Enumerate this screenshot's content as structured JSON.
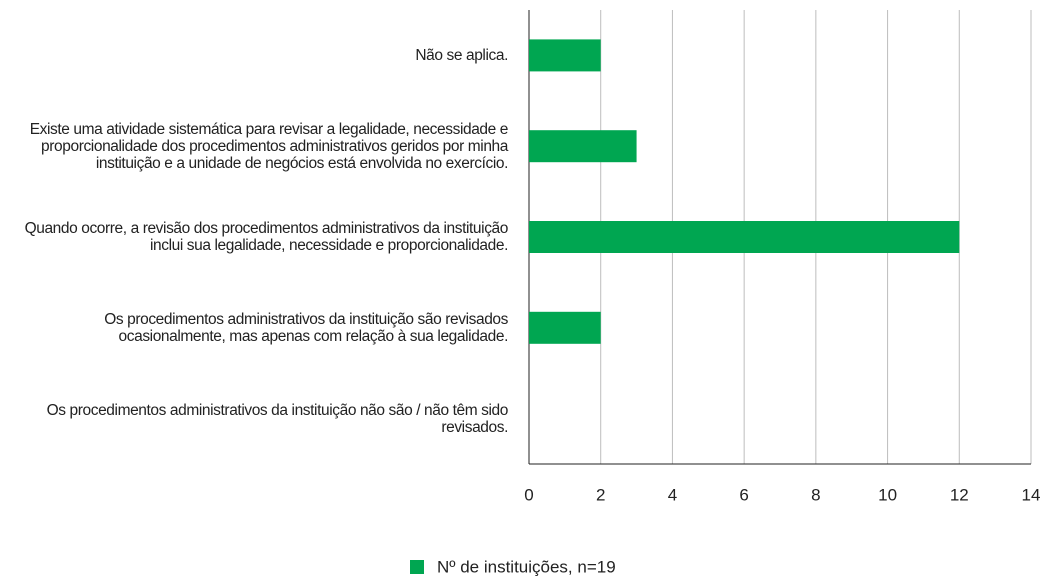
{
  "chart_data": {
    "type": "bar",
    "orientation": "horizontal",
    "categories": [
      "Não se aplica.",
      "Existe uma atividade sistemática para revisar a legalidade, necessidade e proporcionalidade dos procedimentos administrativos geridos por minha instituição e a unidade de negócios está envolvida no exercício.",
      "Quando ocorre, a revisão dos procedimentos administrativos da instituição inclui sua legalidade, necessidade e proporcionalidade.",
      "Os procedimentos administrativos da instituição são revisados ocasionalmente, mas apenas com relação à sua legalidade.",
      "Os procedimentos administrativos da instituição não são / não têm sido revisados."
    ],
    "series": [
      {
        "name": "Nº de instituições, n=19",
        "color": "#00a651",
        "values": [
          2,
          3,
          12,
          2,
          0
        ]
      }
    ],
    "xlim": [
      0,
      14
    ],
    "xticks": [
      0,
      2,
      4,
      6,
      8,
      10,
      12,
      14
    ],
    "grid": true,
    "legend": "bottom"
  }
}
